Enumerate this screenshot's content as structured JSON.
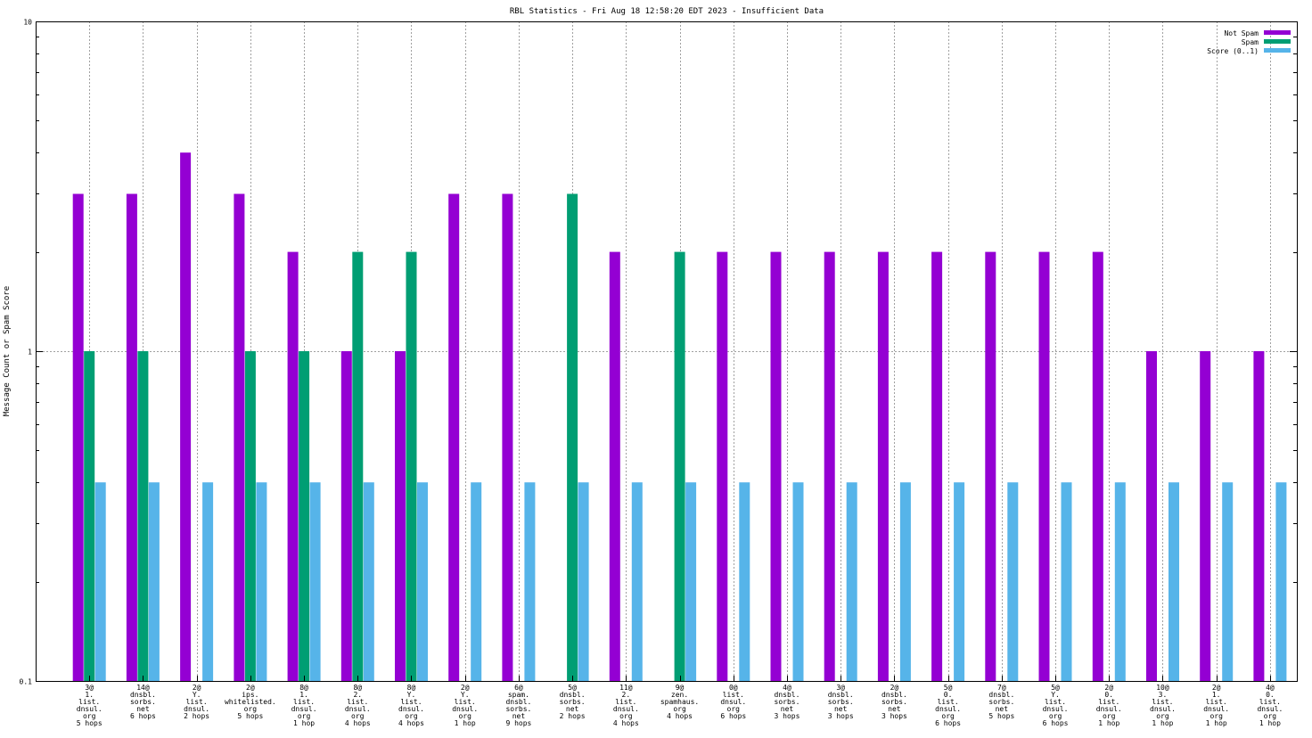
{
  "chart_data": {
    "type": "bar",
    "scale": "log",
    "title": "RBL Statistics - Fri Aug 18 12:58:20 EDT 2023 - Insufficient Data",
    "ylabel": "Message Count or Spam Score",
    "xlabel": "",
    "ylim": [
      0.1,
      10
    ],
    "yticks": [
      {
        "value": 0.1,
        "label": "0.1"
      },
      {
        "value": 1,
        "label": "1"
      },
      {
        "value": 10,
        "label": "10"
      }
    ],
    "grid": true,
    "legend_position": "top-right",
    "categories": [
      [
        "3@",
        "1.",
        "list.",
        "dnsul.",
        "org",
        "5 hops"
      ],
      [
        "14@",
        "dnsbl.",
        "sorbs.",
        "net",
        "6 hops"
      ],
      [
        "2@",
        "Y.",
        "list.",
        "dnsul.",
        "2 hops"
      ],
      [
        "2@",
        "ips.",
        "whitelisted.",
        "org",
        "5 hops"
      ],
      [
        "8@",
        "1.",
        "list.",
        "dnsul.",
        "org",
        "1 hop"
      ],
      [
        "8@",
        "2.",
        "list.",
        "dnsul.",
        "org",
        "4 hops"
      ],
      [
        "8@",
        "Y.",
        "list.",
        "dnsul.",
        "org",
        "4 hops"
      ],
      [
        "2@",
        "Y.",
        "list.",
        "dnsul.",
        "org",
        "1 hop"
      ],
      [
        "6@",
        "spam.",
        "dnsbl.",
        "sorbs.",
        "net",
        "9 hops"
      ],
      [
        "5@",
        "dnsbl.",
        "sorbs.",
        "net",
        "2 hops"
      ],
      [
        "11@",
        "2.",
        "list.",
        "dnsul.",
        "org",
        "4 hops"
      ],
      [
        "9@",
        "zen.",
        "spamhaus.",
        "org",
        "4 hops"
      ],
      [
        "0@",
        "list.",
        "dnsul.",
        "org",
        "6 hops"
      ],
      [
        "4@",
        "dnsbl.",
        "sorbs.",
        "net",
        "3 hops"
      ],
      [
        "3@",
        "dnsbl.",
        "sorbs.",
        "net",
        "3 hops"
      ],
      [
        "2@",
        "dnsbl.",
        "sorbs.",
        "net",
        "3 hops"
      ],
      [
        "5@",
        "0.",
        "list.",
        "dnsul.",
        "org",
        "6 hops"
      ],
      [
        "7@",
        "dnsbl.",
        "sorbs.",
        "net",
        "5 hops"
      ],
      [
        "5@",
        "Y.",
        "list.",
        "dnsul.",
        "org",
        "6 hops"
      ],
      [
        "2@",
        "0.",
        "list.",
        "dnsul.",
        "org",
        "1 hop"
      ],
      [
        "10@",
        "3.",
        "list.",
        "dnsul.",
        "org",
        "1 hop"
      ],
      [
        "2@",
        "1.",
        "list.",
        "dnsul.",
        "org",
        "1 hop"
      ],
      [
        "4@",
        "0.",
        "list.",
        "dnsul.",
        "org",
        "1 hop"
      ]
    ],
    "series": [
      {
        "name": "Not Spam",
        "color": "#9400d3",
        "values": [
          3,
          3,
          4,
          3,
          2,
          1,
          1,
          3,
          3,
          null,
          2,
          null,
          2,
          2,
          2,
          2,
          2,
          2,
          2,
          2,
          1,
          1,
          1
        ]
      },
      {
        "name": "Spam",
        "color": "#009e73",
        "values": [
          1,
          1,
          null,
          1,
          1,
          2,
          2,
          null,
          null,
          3,
          null,
          2,
          null,
          null,
          null,
          null,
          null,
          null,
          null,
          null,
          null,
          null,
          null
        ]
      },
      {
        "name": "Score (0..1)",
        "color": "#56b4e9",
        "values": [
          0.4,
          0.4,
          0.4,
          0.4,
          0.4,
          0.4,
          0.4,
          0.4,
          0.4,
          0.4,
          0.4,
          0.4,
          0.4,
          0.4,
          0.4,
          0.4,
          0.4,
          0.4,
          0.4,
          0.4,
          0.4,
          0.4,
          0.4
        ]
      }
    ]
  }
}
